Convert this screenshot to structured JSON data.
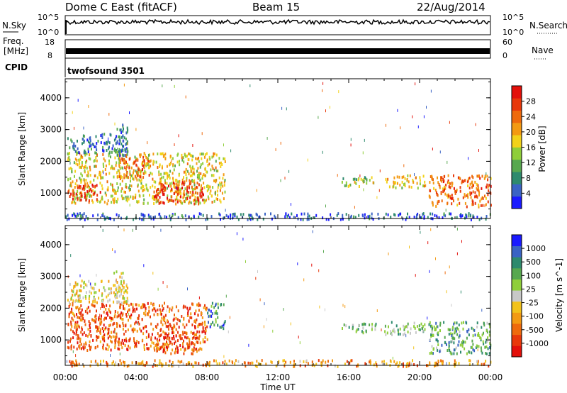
{
  "header": {
    "station": "Dome C East (fitACF)",
    "beam": "Beam 15",
    "date": "22/Aug/2014"
  },
  "strips": {
    "nsky": {
      "label": "N.Sky",
      "top_tick": "10^5",
      "bottom_tick": "10^0"
    },
    "nsearch": {
      "label": "N.Search",
      "top_tick": "10^5",
      "bottom_tick": "10^0"
    },
    "freq": {
      "label": "Freq.",
      "unit": "[MHz]",
      "top_tick": "18",
      "bottom_tick": "8"
    },
    "nave": {
      "label": "Nave",
      "top_tick": "60",
      "bottom_tick": "0"
    },
    "cpid": {
      "label": "CPID",
      "value": "twofsound 3501"
    }
  },
  "chart_data": [
    {
      "type": "heatmap",
      "name": "power-panel",
      "ylabel": "Slant Range [km]",
      "xlabel": "",
      "yticks": [
        "1000",
        "2000",
        "3000",
        "4000"
      ],
      "ylim": [
        200,
        4600
      ],
      "xlim": [
        0,
        24
      ],
      "colorbar": {
        "label": "Power [dB]",
        "ticks": [
          "4",
          "8",
          "12",
          "16",
          "20",
          "24",
          "28"
        ],
        "range": [
          0,
          32
        ],
        "colors": [
          "#1a1aff",
          "#3a63c4",
          "#2e8a6d",
          "#58a84f",
          "#8fce3a",
          "#f2d21a",
          "#f39a12",
          "#ee6a0c",
          "#e8380a",
          "#e3100a"
        ]
      },
      "regions": [
        {
          "t": [
            0.1,
            9.0
          ],
          "r": [
            700,
            2300
          ],
          "level": 0.55
        },
        {
          "t": [
            0.1,
            3.5
          ],
          "r": [
            2300,
            2900
          ],
          "level": 0.2
        },
        {
          "t": [
            2.7,
            3.5
          ],
          "r": [
            2200,
            3200
          ],
          "level": 0.25
        },
        {
          "t": [
            0.1,
            2.0
          ],
          "r": [
            800,
            1300
          ],
          "level": 0.9
        },
        {
          "t": [
            3.0,
            4.8
          ],
          "r": [
            1500,
            2200
          ],
          "level": 0.75
        },
        {
          "t": [
            5.0,
            7.8
          ],
          "r": [
            700,
            1400
          ],
          "level": 0.85
        },
        {
          "t": [
            15.5,
            17.5
          ],
          "r": [
            1250,
            1550
          ],
          "level": 0.45
        },
        {
          "t": [
            18.0,
            20.3
          ],
          "r": [
            1200,
            1600
          ],
          "level": 0.55
        },
        {
          "t": [
            20.5,
            24.0
          ],
          "r": [
            600,
            1600
          ],
          "level": 0.75
        },
        {
          "t": [
            0.0,
            24.0
          ],
          "r": [
            200,
            400
          ],
          "level": 0.15
        }
      ]
    },
    {
      "type": "heatmap",
      "name": "velocity-panel",
      "ylabel": "Slant Range [km]",
      "xlabel": "Time UT",
      "xticks": [
        "00:00",
        "04:00",
        "08:00",
        "12:00",
        "16:00",
        "20:00",
        "00:00"
      ],
      "yticks": [
        "1000",
        "2000",
        "3000",
        "4000"
      ],
      "ylim": [
        200,
        4600
      ],
      "xlim": [
        0,
        24
      ],
      "colorbar": {
        "label": "Velocity [m s^-1]",
        "ticks": [
          "-1000",
          "-500",
          "-100",
          "-25",
          "25",
          "100",
          "500",
          "1000"
        ],
        "colors": [
          "#e3100a",
          "#e8380a",
          "#ee6a0c",
          "#f39a12",
          "#f2c21a",
          "#c8c8c8",
          "#8fce3a",
          "#58a84f",
          "#2e8a6d",
          "#3a63c4",
          "#1a1aff"
        ]
      },
      "regions": [
        {
          "t": [
            0.1,
            8.0
          ],
          "r": [
            700,
            2200
          ],
          "level": 0.2
        },
        {
          "t": [
            0.1,
            3.5
          ],
          "r": [
            2200,
            2900
          ],
          "level": 0.45
        },
        {
          "t": [
            2.7,
            3.5
          ],
          "r": [
            2200,
            3200
          ],
          "level": 0.45
        },
        {
          "t": [
            5.0,
            7.5
          ],
          "r": [
            600,
            1300
          ],
          "level": 0.15
        },
        {
          "t": [
            8.0,
            9.0
          ],
          "r": [
            1400,
            2200
          ],
          "level": 0.75
        },
        {
          "t": [
            15.5,
            17.5
          ],
          "r": [
            1250,
            1550
          ],
          "level": 0.65
        },
        {
          "t": [
            18.0,
            20.3
          ],
          "r": [
            1200,
            1600
          ],
          "level": 0.6
        },
        {
          "t": [
            20.5,
            24.0
          ],
          "r": [
            600,
            1600
          ],
          "level": 0.7
        },
        {
          "t": [
            0.0,
            24.0
          ],
          "r": [
            200,
            400
          ],
          "level": 0.3
        }
      ]
    }
  ]
}
